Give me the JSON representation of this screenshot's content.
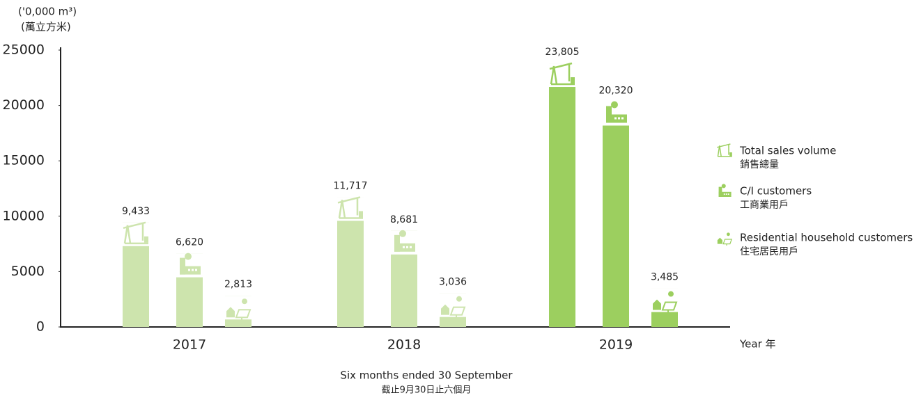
{
  "chart_data": {
    "type": "bar",
    "unit_label": "('0,000 m³)",
    "unit_label_zh": "(萬立方米)",
    "x_label": "Year 年",
    "x_caption": "Six months ended 30 September",
    "x_caption_zh": "截止9月30日止六個月",
    "categories": [
      "2017",
      "2018",
      "2019"
    ],
    "category_colors": [
      "#cde4ad",
      "#cde4ad",
      "#9ccf5f"
    ],
    "series": [
      {
        "name": "Total sales volume",
        "name_zh": "銷售總量",
        "icon": "pump",
        "values": [
          9433,
          11717,
          23805
        ],
        "value_labels": [
          "9,433",
          "11,717",
          "23,805"
        ]
      },
      {
        "name": "C/I customers",
        "name_zh": "工商業用戶",
        "icon": "factory",
        "values": [
          6620,
          8681,
          20320
        ],
        "value_labels": [
          "6,620",
          "8,681",
          "20,320"
        ]
      },
      {
        "name": "Residential household customers",
        "name_zh": "住宅居民用戶",
        "icon": "house",
        "values": [
          2813,
          3036,
          3485
        ],
        "value_labels": [
          "2,813",
          "3,036",
          "3,485"
        ]
      }
    ],
    "legend_color": "#9ccf5f",
    "ylim": [
      0,
      25000
    ],
    "yticks": [
      0,
      5000,
      10000,
      15000,
      20000,
      25000
    ]
  }
}
